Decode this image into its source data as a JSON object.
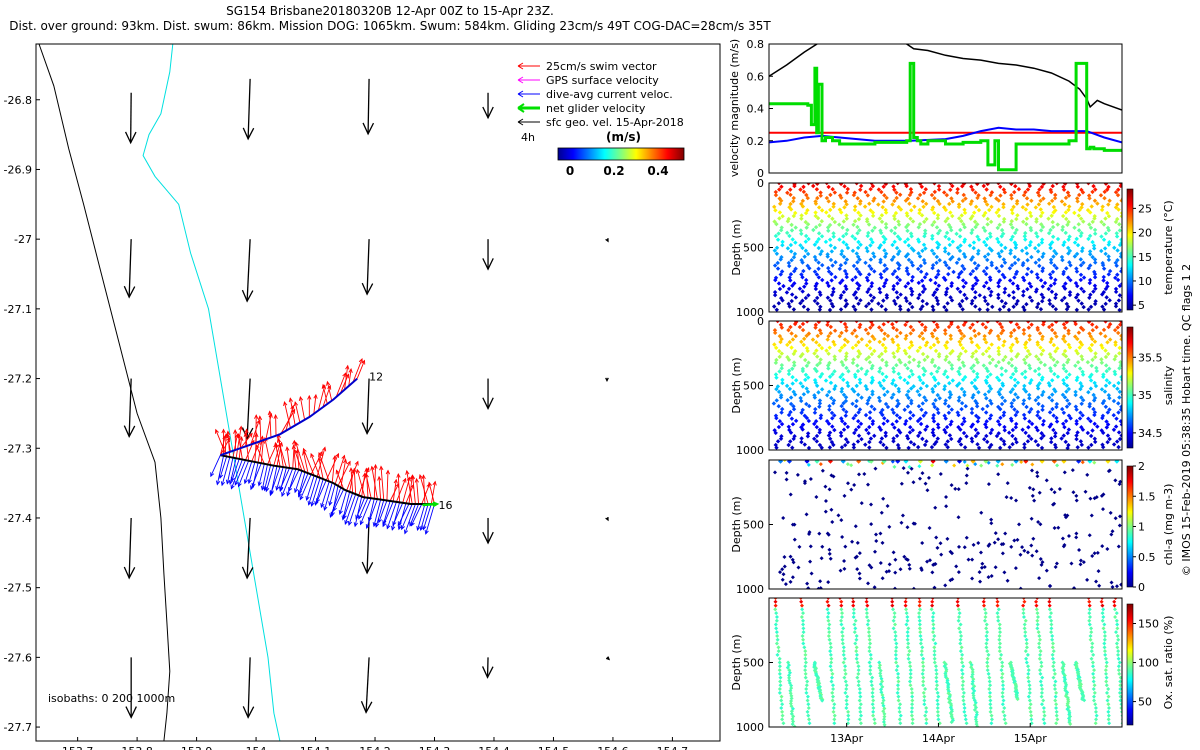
{
  "title": {
    "line1": "SG154 Brisbane20180320B 12-Apr 00Z to 15-Apr 23Z.",
    "line2": "Dist. over ground: 93km. Dist. swum: 86km. Mission DOG: 1065km. Swum: 584km. Gliding 23cm/s 49T COG-DAC=28cm/s 35T"
  },
  "side_note": "© IMOS 15-Feb-2019 05:38:35 Hobart time. QC flags 1  2",
  "colors": {
    "swim": "#ff0000",
    "gps": "#ff00ff",
    "dac": "#0000ff",
    "net": "#00e000",
    "sfc": "#000000",
    "isobath_200": "#00e0e0",
    "isobath_1000": "#000000",
    "speed_line": "#ff0000",
    "dac_speed": "#0000ff",
    "glider_speed": "#00dd00"
  },
  "chart_data": [
    {
      "id": "map",
      "type": "quiver-map",
      "xlim": [
        153.63,
        154.78
      ],
      "ylim": [
        -27.72,
        -26.72
      ],
      "xticks": [
        153.7,
        153.8,
        153.9,
        154,
        154.1,
        154.2,
        154.3,
        154.4,
        154.5,
        154.6,
        154.7
      ],
      "xtick_labels": [
        "153.7",
        "153.8",
        "153.9",
        "154",
        "154.1",
        "154.2",
        "154.3",
        "154.4",
        "154.5",
        "154.6",
        "154.7"
      ],
      "yticks": [
        -26.8,
        -26.9,
        -27,
        -27.1,
        -27.2,
        -27.3,
        -27.4,
        -27.5,
        -27.6,
        -27.7
      ],
      "ytick_labels": [
        "-26.8",
        "-26.9",
        "-27",
        "-27.1",
        "-27.2",
        "-27.3",
        "-27.4",
        "-27.5",
        "-27.6",
        "-27.7"
      ],
      "legend": {
        "items": [
          {
            "label": "25cm/s swim vector",
            "color": "#ff0000"
          },
          {
            "label": "GPS surface velocity",
            "color": "#ff00ff"
          },
          {
            "label": "dive-avg current veloc.",
            "color": "#0000ff"
          },
          {
            "label": "net glider velocity",
            "color": "#00e000"
          },
          {
            "label": "sfc geo. vel. 15-Apr-2018",
            "color": "#000000"
          }
        ],
        "time_note": "4h",
        "colorbar_title": "(m/s)",
        "colorbar_ticks": [
          "0",
          "0.2",
          "0.4"
        ],
        "colorbar_range": [
          0,
          0.5
        ]
      },
      "isobath_label": "isobaths: 0   200  1000m",
      "isobath_1000": [
        [
          153.635,
          -26.72
        ],
        [
          153.66,
          -26.78
        ],
        [
          153.685,
          -26.87
        ],
        [
          153.71,
          -26.95
        ],
        [
          153.74,
          -27.05
        ],
        [
          153.77,
          -27.15
        ],
        [
          153.8,
          -27.25
        ],
        [
          153.83,
          -27.32
        ],
        [
          153.84,
          -27.4
        ],
        [
          153.845,
          -27.48
        ],
        [
          153.85,
          -27.55
        ],
        [
          153.855,
          -27.62
        ],
        [
          153.85,
          -27.68
        ],
        [
          153.845,
          -27.72
        ]
      ],
      "isobath_200": [
        [
          153.86,
          -26.72
        ],
        [
          153.855,
          -26.76
        ],
        [
          153.84,
          -26.82
        ],
        [
          153.82,
          -26.85
        ],
        [
          153.81,
          -26.88
        ],
        [
          153.83,
          -26.91
        ],
        [
          153.87,
          -26.95
        ],
        [
          153.89,
          -27.02
        ],
        [
          153.92,
          -27.1
        ],
        [
          153.94,
          -27.2
        ],
        [
          153.96,
          -27.3
        ],
        [
          153.98,
          -27.4
        ],
        [
          154.0,
          -27.5
        ],
        [
          154.02,
          -27.6
        ],
        [
          154.03,
          -27.68
        ],
        [
          154.04,
          -27.72
        ]
      ],
      "sfc_arrows": [
        {
          "lon": 153.79,
          "lat": -26.79,
          "u": -0.005,
          "v": -0.5
        },
        {
          "lon": 153.99,
          "lat": -26.77,
          "u": -0.02,
          "v": -0.6
        },
        {
          "lon": 154.19,
          "lat": -26.77,
          "u": -0.01,
          "v": -0.55
        },
        {
          "lon": 154.39,
          "lat": -26.79,
          "u": 0.0,
          "v": -0.25
        },
        {
          "lon": 153.79,
          "lat": -27.0,
          "u": -0.02,
          "v": -0.58
        },
        {
          "lon": 153.99,
          "lat": -27.0,
          "u": -0.03,
          "v": -0.62
        },
        {
          "lon": 154.19,
          "lat": -27.0,
          "u": -0.02,
          "v": -0.55
        },
        {
          "lon": 154.39,
          "lat": -27.0,
          "u": 0.0,
          "v": -0.3
        },
        {
          "lon": 154.59,
          "lat": -27.0,
          "u": 0.01,
          "v": -0.02
        },
        {
          "lon": 153.79,
          "lat": -27.2,
          "u": -0.02,
          "v": -0.58
        },
        {
          "lon": 153.99,
          "lat": -27.2,
          "u": -0.03,
          "v": -0.6
        },
        {
          "lon": 154.19,
          "lat": -27.2,
          "u": -0.02,
          "v": -0.55
        },
        {
          "lon": 154.39,
          "lat": -27.2,
          "u": 0.0,
          "v": -0.3
        },
        {
          "lon": 154.59,
          "lat": -27.2,
          "u": 0.0,
          "v": -0.02
        },
        {
          "lon": 153.79,
          "lat": -27.4,
          "u": -0.02,
          "v": -0.6
        },
        {
          "lon": 153.99,
          "lat": -27.4,
          "u": -0.03,
          "v": -0.6
        },
        {
          "lon": 154.19,
          "lat": -27.4,
          "u": -0.02,
          "v": -0.55
        },
        {
          "lon": 154.39,
          "lat": -27.4,
          "u": 0.0,
          "v": -0.25
        },
        {
          "lon": 154.59,
          "lat": -27.4,
          "u": 0.01,
          "v": -0.02
        },
        {
          "lon": 153.79,
          "lat": -27.6,
          "u": 0.0,
          "v": -0.6
        },
        {
          "lon": 153.99,
          "lat": -27.6,
          "u": -0.02,
          "v": -0.6
        },
        {
          "lon": 154.19,
          "lat": -27.6,
          "u": -0.03,
          "v": -0.55
        },
        {
          "lon": 154.39,
          "lat": -27.6,
          "u": -0.005,
          "v": -0.2
        },
        {
          "lon": 154.59,
          "lat": -27.6,
          "u": 0.02,
          "v": -0.02
        }
      ],
      "track": [
        [
          153.94,
          -27.31
        ],
        [
          153.97,
          -27.315
        ],
        [
          154.0,
          -27.32
        ],
        [
          154.03,
          -27.325
        ],
        [
          154.07,
          -27.33
        ],
        [
          154.1,
          -27.34
        ],
        [
          154.13,
          -27.35
        ],
        [
          154.15,
          -27.36
        ],
        [
          154.18,
          -27.37
        ],
        [
          154.22,
          -27.375
        ],
        [
          154.26,
          -27.38
        ],
        [
          154.3,
          -27.38
        ]
      ],
      "return_leg": [
        [
          153.94,
          -27.31
        ],
        [
          153.99,
          -27.295
        ],
        [
          154.04,
          -27.28
        ],
        [
          154.09,
          -27.255
        ],
        [
          154.13,
          -27.23
        ],
        [
          154.17,
          -27.2
        ]
      ],
      "swim_dir": [
        0.6,
        0.8
      ],
      "dac_dir": [
        0.05,
        -0.5
      ],
      "label_start": "12",
      "label_end": "16"
    },
    {
      "id": "speed",
      "type": "line",
      "ylabel": "velocity magnitude (m/s)",
      "ylim": [
        0,
        0.8
      ],
      "yticks": [
        "0",
        "0.2",
        "0.4",
        "0.6",
        "0.8"
      ],
      "reference_speed": 0.25,
      "series": [
        {
          "name": "surface speed",
          "color": "#000000",
          "x": [
            0,
            0.05,
            0.1,
            0.15,
            0.2,
            0.25,
            0.3,
            0.38,
            0.39,
            0.41,
            0.45,
            0.5,
            0.55,
            0.6,
            0.65,
            0.7,
            0.75,
            0.8,
            0.85,
            0.88,
            0.9,
            0.91,
            0.93,
            0.95,
            1.0
          ],
          "values": [
            0.6,
            0.67,
            0.75,
            0.82,
            0.85,
            0.86,
            0.86,
            0.82,
            0.8,
            0.77,
            0.76,
            0.73,
            0.71,
            0.7,
            0.68,
            0.67,
            0.65,
            0.62,
            0.57,
            0.52,
            0.46,
            0.41,
            0.45,
            0.43,
            0.39
          ]
        },
        {
          "name": "dive-avg speed",
          "color": "#0000ff",
          "x": [
            0,
            0.05,
            0.1,
            0.15,
            0.2,
            0.3,
            0.4,
            0.5,
            0.55,
            0.6,
            0.65,
            0.7,
            0.75,
            0.8,
            0.85,
            0.9,
            0.95,
            1.0
          ],
          "values": [
            0.19,
            0.2,
            0.22,
            0.23,
            0.22,
            0.2,
            0.2,
            0.21,
            0.23,
            0.26,
            0.28,
            0.27,
            0.27,
            0.26,
            0.26,
            0.26,
            0.22,
            0.19
          ]
        },
        {
          "name": "net glider speed",
          "color": "#00dd00",
          "x": [
            0,
            0.01,
            0.1,
            0.11,
            0.12,
            0.13,
            0.135,
            0.14,
            0.15,
            0.16,
            0.18,
            0.2,
            0.3,
            0.39,
            0.4,
            0.41,
            0.42,
            0.43,
            0.45,
            0.5,
            0.55,
            0.6,
            0.62,
            0.64,
            0.65,
            0.7,
            0.8,
            0.85,
            0.87,
            0.9,
            0.91,
            0.92,
            0.95,
            1.0
          ],
          "values": [
            0.43,
            0.43,
            0.43,
            0.42,
            0.3,
            0.65,
            0.25,
            0.55,
            0.2,
            0.22,
            0.2,
            0.18,
            0.19,
            0.2,
            0.68,
            0.22,
            0.2,
            0.18,
            0.2,
            0.18,
            0.19,
            0.2,
            0.05,
            0.2,
            0.02,
            0.18,
            0.18,
            0.2,
            0.68,
            0.15,
            0.16,
            0.15,
            0.14,
            0.15
          ]
        }
      ]
    },
    {
      "id": "temperature",
      "type": "scatter-profile",
      "ylabel": "Depth (m)",
      "cbar_label": "temperature (°C)",
      "ylim": [
        1000,
        0
      ],
      "yticks": [
        "0",
        "500",
        "1000"
      ],
      "cbar_range": [
        4,
        29
      ],
      "cbar_ticks": [
        "5",
        "10",
        "15",
        "20",
        "25"
      ],
      "profiles": 27,
      "max_depth_m": 1000,
      "surface_value": 27,
      "deep_value": 5
    },
    {
      "id": "salinity",
      "type": "scatter-profile",
      "ylabel": "Depth (m)",
      "cbar_label": "salinity",
      "ylim": [
        1000,
        0
      ],
      "yticks": [
        "0",
        "500",
        "1000"
      ],
      "cbar_range": [
        34.3,
        35.9
      ],
      "cbar_ticks": [
        "34.5",
        "35",
        "35.5"
      ],
      "profiles": 27,
      "max_depth_m": 1000,
      "surface_value": 35.7,
      "deep_value": 34.4
    },
    {
      "id": "chla",
      "type": "scatter-profile",
      "ylabel": "Depth (m)",
      "cbar_label": "chl-a (mg m-3)",
      "ylim": [
        1000,
        0
      ],
      "yticks": [
        "500",
        "1000"
      ],
      "cbar_range": [
        0,
        2
      ],
      "cbar_ticks": [
        "0",
        "0.5",
        "1",
        "1.5",
        "2"
      ],
      "profiles": 27,
      "max_depth_m": 1000,
      "surface_value": 0.8,
      "deep_value": 0.0
    },
    {
      "id": "oxygen",
      "type": "scatter-profile",
      "ylabel": "Depth (m)",
      "cbar_label": "Ox. sat. ratio (%)",
      "ylim": [
        1000,
        0
      ],
      "yticks": [
        "500",
        "1000"
      ],
      "cbar_range": [
        20,
        175
      ],
      "cbar_ticks": [
        "50",
        "100",
        "150"
      ],
      "xtick_labels": [
        "13Apr",
        "14Apr",
        "15Apr"
      ],
      "profiles": 27,
      "max_depth_m": 1000,
      "surface_value": 110,
      "deep_value": 85
    }
  ]
}
